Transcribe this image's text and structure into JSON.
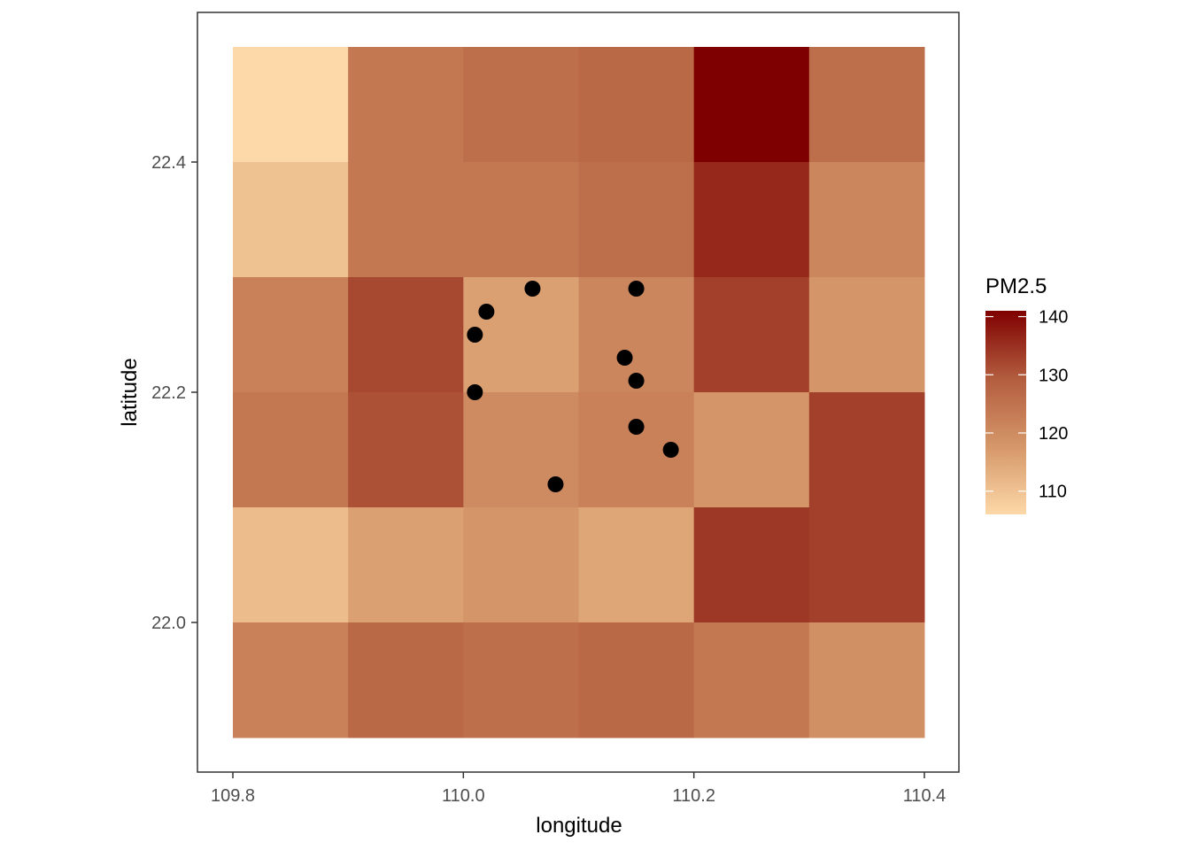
{
  "chart_data": {
    "type": "heatmap",
    "xlabel": "longitude",
    "ylabel": "latitude",
    "xlim": [
      109.8,
      110.4
    ],
    "ylim": [
      21.9,
      22.5
    ],
    "x_ticks": [
      "109.8",
      "110.0",
      "110.2",
      "110.4"
    ],
    "y_ticks": [
      "22.0",
      "22.2",
      "22.4"
    ],
    "grid": false,
    "legend": {
      "title": "PM2.5",
      "placement": "right",
      "labels": [
        "140",
        "130",
        "120",
        "110"
      ],
      "range": [
        106,
        141
      ],
      "colors": [
        "#fdd8a8",
        "#d59769",
        "#b35d3f",
        "#7f0000"
      ]
    },
    "tile_width": 0.1,
    "tile_height": 0.1,
    "tile_x_centers": [
      109.85,
      109.95,
      110.05,
      110.15,
      110.25,
      110.35
    ],
    "tile_y_centers": [
      22.45,
      22.35,
      22.25,
      22.15,
      22.05,
      21.95
    ],
    "values": [
      [
        106,
        124,
        126,
        127,
        141,
        126
      ],
      [
        110,
        124,
        124,
        126,
        136,
        121
      ],
      [
        122,
        132,
        116,
        121,
        133,
        118
      ],
      [
        124,
        131,
        120,
        122,
        118,
        133
      ],
      [
        111,
        116,
        118,
        115,
        134,
        133
      ],
      [
        122,
        127,
        126,
        127,
        124,
        119
      ]
    ],
    "points": [
      {
        "x": 110.06,
        "y": 22.29
      },
      {
        "x": 110.15,
        "y": 22.29
      },
      {
        "x": 110.02,
        "y": 22.27
      },
      {
        "x": 110.01,
        "y": 22.25
      },
      {
        "x": 110.14,
        "y": 22.23
      },
      {
        "x": 110.15,
        "y": 22.21
      },
      {
        "x": 110.01,
        "y": 22.2
      },
      {
        "x": 110.15,
        "y": 22.17
      },
      {
        "x": 110.18,
        "y": 22.15
      },
      {
        "x": 110.08,
        "y": 22.12
      }
    ]
  }
}
